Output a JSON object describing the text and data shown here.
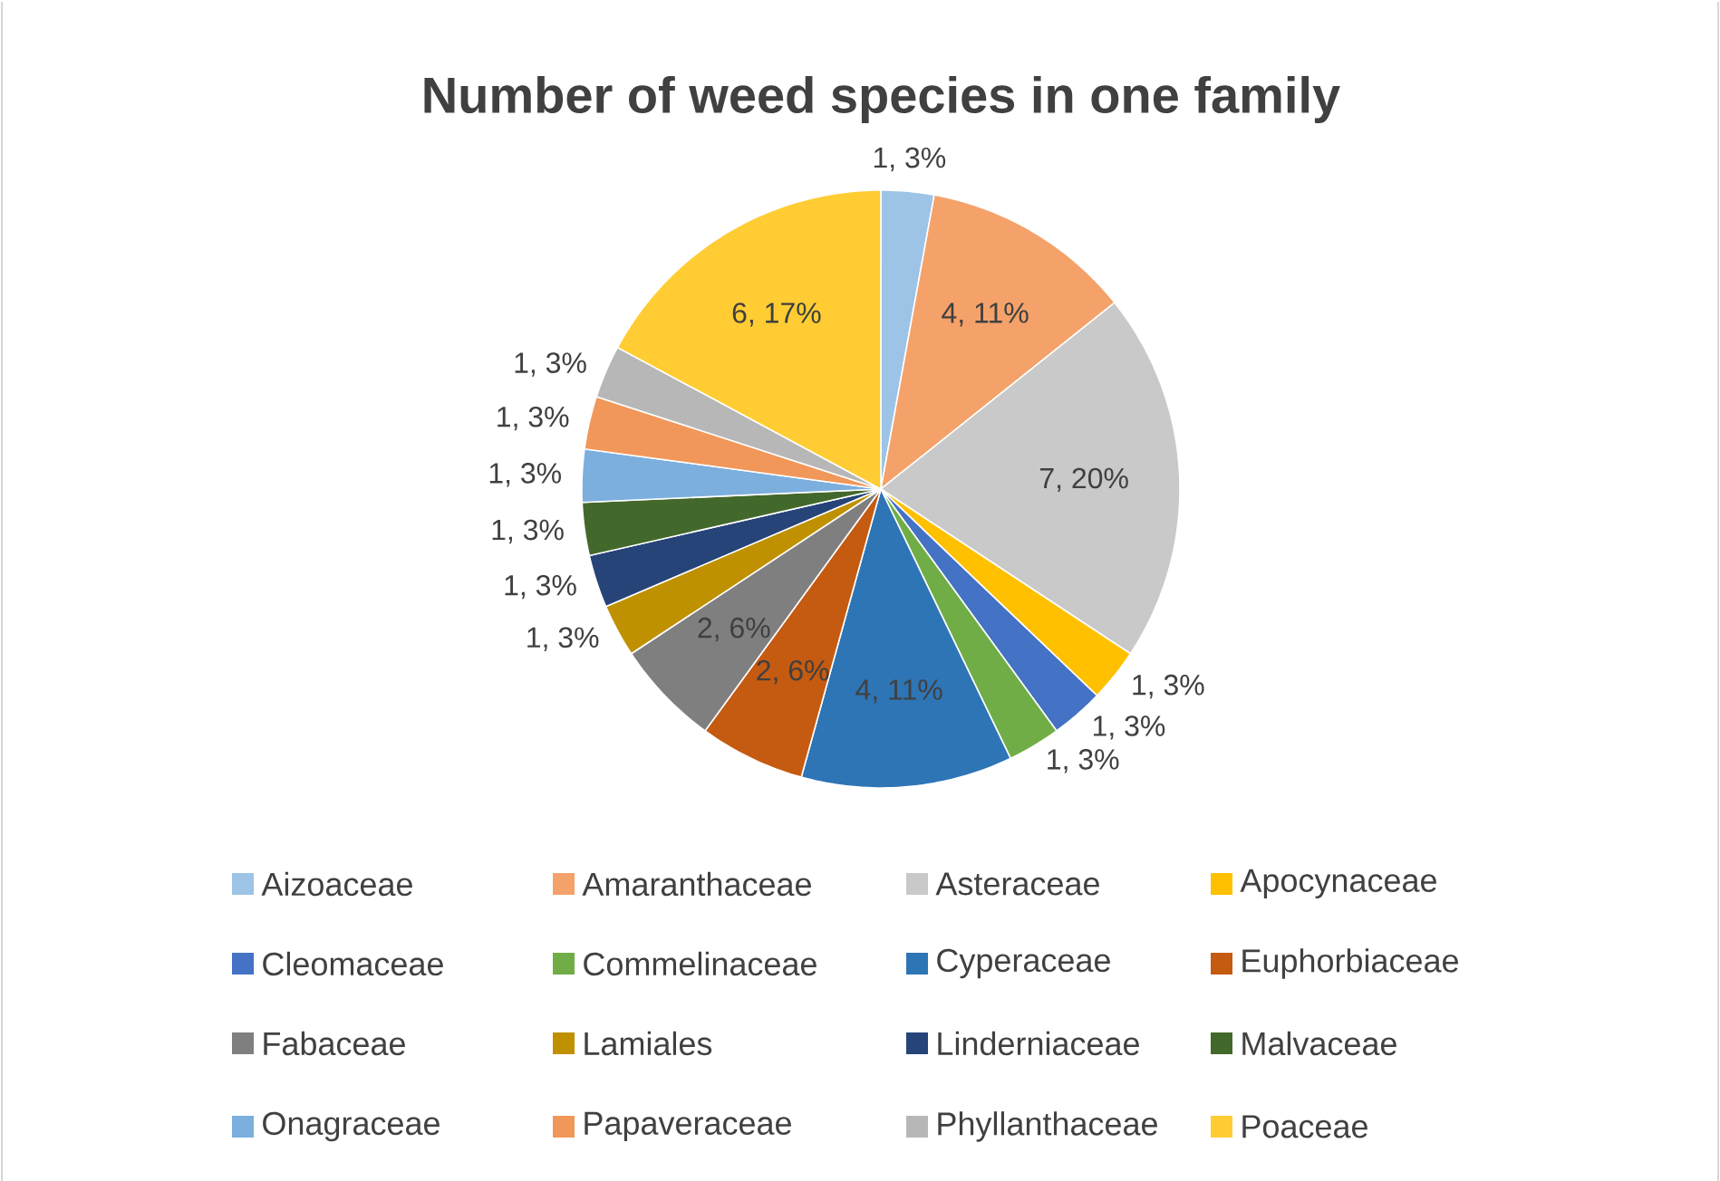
{
  "chart_data": {
    "type": "pie",
    "title": "Number of weed species in one family",
    "categories": [
      "Aizoaceae",
      "Amaranthaceae",
      "Asteraceae",
      "Apocynaceae",
      "Cleomaceae",
      "Commelinaceae",
      "Cyperaceae",
      "Euphorbiaceae",
      "Fabaceae",
      "Lamiales",
      "Linderniaceae",
      "Malvaceae",
      "Onagraceae",
      "Papaveraceae",
      "Phyllanthaceae",
      "Poaceae"
    ],
    "values": [
      1,
      4,
      7,
      1,
      1,
      1,
      4,
      2,
      2,
      1,
      1,
      1,
      1,
      1,
      1,
      6
    ],
    "value_labels": [
      "1, 3%",
      "4, 11%",
      "7, 20%",
      "1, 3%",
      "1, 3%",
      "1, 3%",
      "4, 11%",
      "2, 6%",
      "2, 6%",
      "1, 3%",
      "1, 3%",
      "1, 3%",
      "1, 3%",
      "1, 3%",
      "1, 3%",
      "6, 17%"
    ],
    "colors": [
      "#9dc3e6",
      "#f4a26a",
      "#c9c9c9",
      "#ffc000",
      "#4472c4",
      "#70ad47",
      "#2e75b6",
      "#c55a11",
      "#7f7f7f",
      "#bf9000",
      "#264478",
      "#43682b",
      "#7cafdd",
      "#f1975a",
      "#b7b7b7",
      "#ffcd33"
    ],
    "legend": "bottom"
  }
}
